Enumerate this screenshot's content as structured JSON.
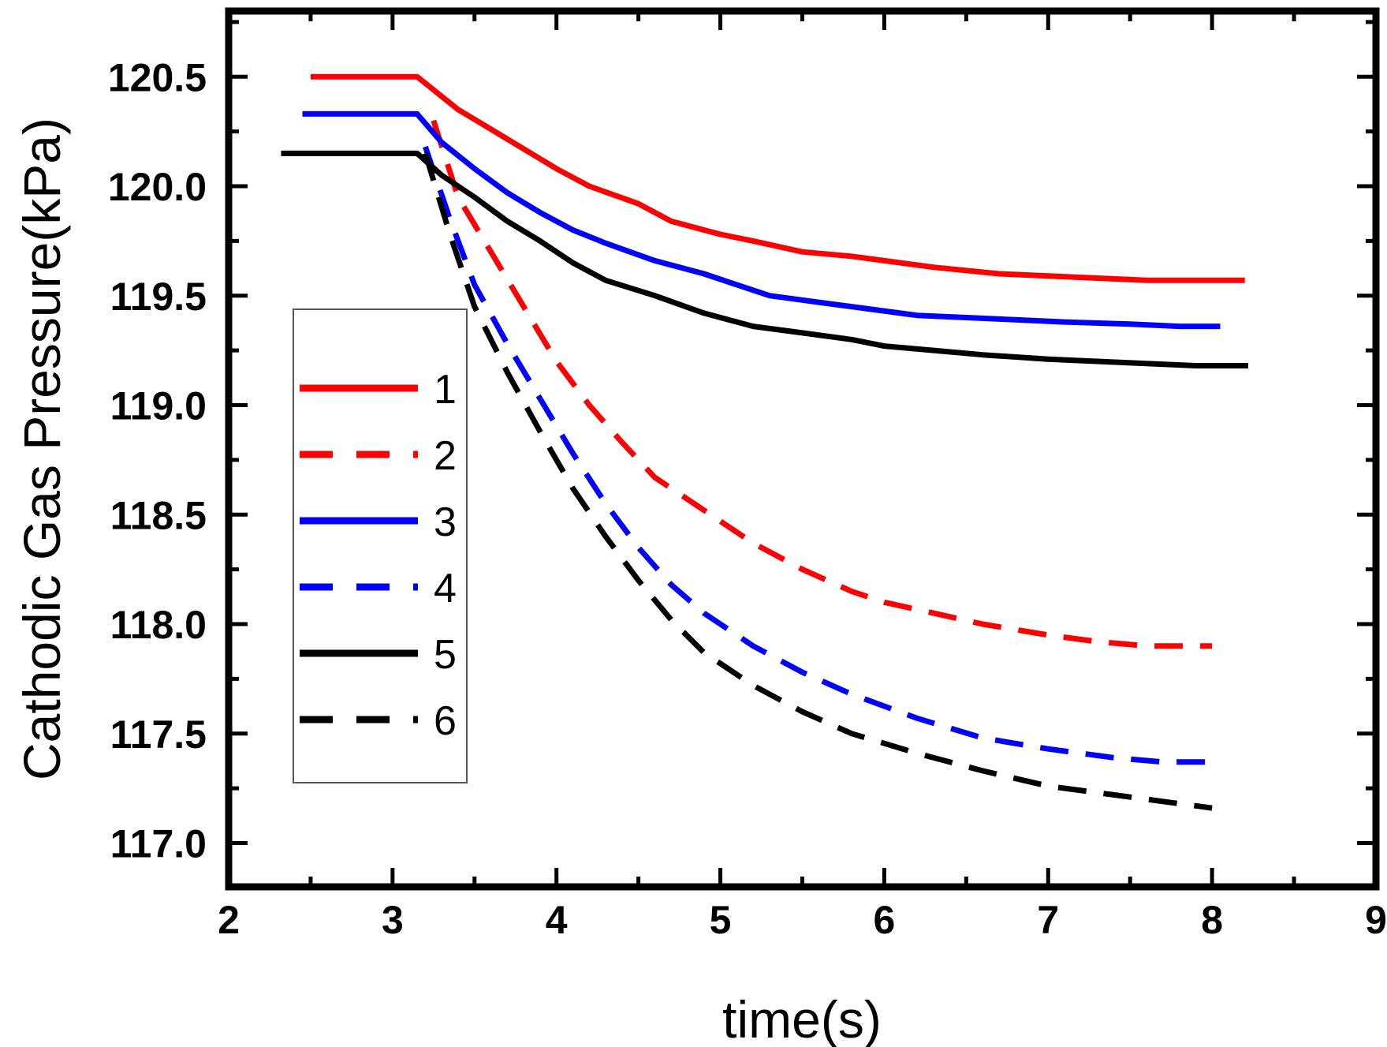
{
  "chart_data": {
    "type": "line",
    "title": "",
    "xlabel": "time(s)",
    "ylabel": "Cathodic Gas Pressure(kPa)",
    "xlim": [
      2,
      9
    ],
    "ylim": [
      116.8,
      120.8
    ],
    "xticks": [
      2,
      3,
      4,
      5,
      6,
      7,
      8,
      9
    ],
    "xtick_labels": [
      "2",
      "3",
      "4",
      "5",
      "6",
      "7",
      "8",
      "9"
    ],
    "yticks": [
      117.0,
      117.5,
      118.0,
      118.5,
      119.0,
      119.5,
      120.0,
      120.5
    ],
    "ytick_labels": [
      "117.0",
      "117.5",
      "118.0",
      "118.5",
      "119.0",
      "119.5",
      "120.0",
      "120.5"
    ],
    "grid": false,
    "legend_position": "center-left",
    "series": [
      {
        "name": "1",
        "color": "#ff0000",
        "dash": "solid",
        "x": [
          2.5,
          3.15,
          3.4,
          3.6,
          3.8,
          4.0,
          4.2,
          4.5,
          4.7,
          5.0,
          5.2,
          5.5,
          5.8,
          6.0,
          6.3,
          6.7,
          7.0,
          7.3,
          7.6,
          7.9,
          8.2
        ],
        "y": [
          120.5,
          120.5,
          120.35,
          120.26,
          120.17,
          120.08,
          120.0,
          119.92,
          119.84,
          119.78,
          119.75,
          119.7,
          119.68,
          119.66,
          119.63,
          119.6,
          119.59,
          119.58,
          119.57,
          119.57,
          119.57
        ]
      },
      {
        "name": "2",
        "color": "#ff0000",
        "dash": "dashed",
        "x": [
          3.25,
          3.4,
          3.6,
          3.8,
          4.0,
          4.2,
          4.4,
          4.6,
          4.8,
          5.0,
          5.2,
          5.5,
          5.8,
          6.0,
          6.3,
          6.6,
          7.0,
          7.3,
          7.6,
          8.0
        ],
        "y": [
          120.3,
          119.95,
          119.7,
          119.45,
          119.2,
          119.0,
          118.83,
          118.67,
          118.57,
          118.47,
          118.37,
          118.25,
          118.15,
          118.1,
          118.05,
          118.0,
          117.95,
          117.92,
          117.9,
          117.9
        ]
      },
      {
        "name": "3",
        "color": "#0000ff",
        "dash": "solid",
        "x": [
          2.45,
          3.15,
          3.3,
          3.5,
          3.7,
          3.9,
          4.1,
          4.3,
          4.6,
          4.9,
          5.1,
          5.3,
          5.6,
          5.9,
          6.2,
          6.5,
          6.8,
          7.1,
          7.5,
          7.8,
          8.05
        ],
        "y": [
          120.33,
          120.33,
          120.2,
          120.08,
          119.97,
          119.88,
          119.8,
          119.74,
          119.66,
          119.6,
          119.55,
          119.5,
          119.47,
          119.44,
          119.41,
          119.4,
          119.39,
          119.38,
          119.37,
          119.36,
          119.36
        ]
      },
      {
        "name": "4",
        "color": "#0000ff",
        "dash": "dashed",
        "x": [
          3.2,
          3.35,
          3.5,
          3.7,
          3.9,
          4.1,
          4.3,
          4.5,
          4.7,
          4.9,
          5.2,
          5.5,
          5.8,
          6.2,
          6.6,
          7.0,
          7.4,
          7.7,
          8.05
        ],
        "y": [
          120.18,
          119.85,
          119.55,
          119.28,
          119.03,
          118.78,
          118.55,
          118.35,
          118.18,
          118.05,
          117.9,
          117.78,
          117.68,
          117.57,
          117.48,
          117.43,
          117.39,
          117.37,
          117.37
        ]
      },
      {
        "name": "5",
        "color": "#000000",
        "dash": "solid",
        "x": [
          2.32,
          3.15,
          3.3,
          3.5,
          3.7,
          3.9,
          4.1,
          4.3,
          4.6,
          4.9,
          5.2,
          5.5,
          5.8,
          6.0,
          6.3,
          6.6,
          7.0,
          7.3,
          7.6,
          7.9,
          8.22
        ],
        "y": [
          120.15,
          120.15,
          120.05,
          119.95,
          119.84,
          119.75,
          119.65,
          119.57,
          119.5,
          119.42,
          119.36,
          119.33,
          119.3,
          119.27,
          119.25,
          119.23,
          119.21,
          119.2,
          119.19,
          119.18,
          119.18
        ]
      },
      {
        "name": "6",
        "color": "#000000",
        "dash": "dashed",
        "x": [
          3.2,
          3.35,
          3.5,
          3.7,
          3.9,
          4.1,
          4.3,
          4.5,
          4.7,
          4.9,
          5.2,
          5.5,
          5.8,
          6.2,
          6.6,
          7.0,
          7.4,
          7.7,
          8.0
        ],
        "y": [
          120.15,
          119.78,
          119.45,
          119.15,
          118.88,
          118.62,
          118.4,
          118.2,
          118.02,
          117.87,
          117.72,
          117.6,
          117.5,
          117.41,
          117.33,
          117.26,
          117.22,
          117.19,
          117.16
        ]
      }
    ]
  }
}
